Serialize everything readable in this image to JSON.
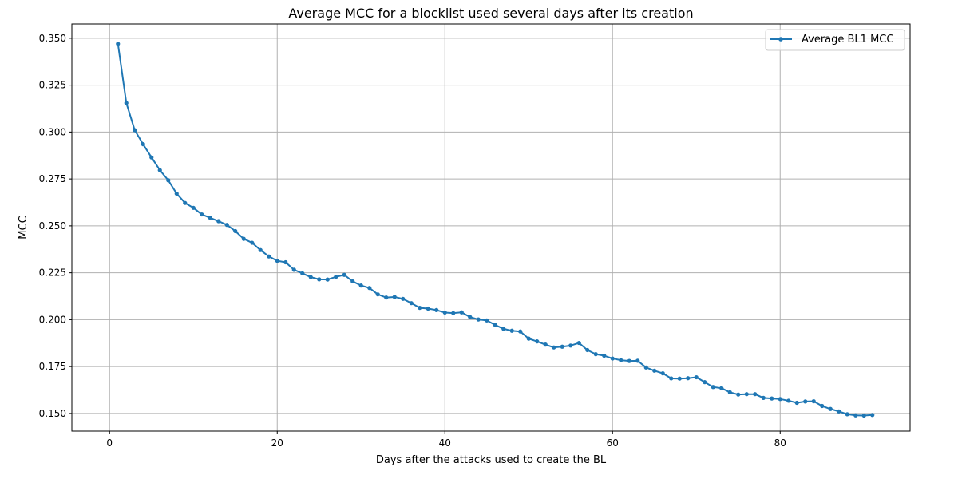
{
  "chart_data": {
    "type": "line",
    "title": "Average MCC for a blocklist used several days after its creation",
    "xlabel": "Days after the attacks used to create the BL",
    "ylabel": "MCC",
    "xlim": [
      -4.5,
      95.5
    ],
    "ylim": [
      0.1406,
      0.3576
    ],
    "xticks": [
      0,
      20,
      40,
      60,
      80
    ],
    "xtick_labels": [
      "0",
      "20",
      "40",
      "60",
      "80"
    ],
    "yticks": [
      0.15,
      0.175,
      0.2,
      0.225,
      0.25,
      0.275,
      0.3,
      0.325,
      0.35
    ],
    "ytick_labels": [
      "0.150",
      "0.175",
      "0.200",
      "0.225",
      "0.250",
      "0.275",
      "0.300",
      "0.325",
      "0.350"
    ],
    "grid": true,
    "legend_position": "top-right",
    "color": "#1f77b4",
    "series": [
      {
        "name": "Average BL1 MCC",
        "x": [
          1,
          2,
          3,
          4,
          5,
          6,
          7,
          8,
          9,
          10,
          11,
          12,
          13,
          14,
          15,
          16,
          17,
          18,
          19,
          20,
          21,
          22,
          23,
          24,
          25,
          26,
          27,
          28,
          29,
          30,
          31,
          32,
          33,
          34,
          35,
          36,
          37,
          38,
          39,
          40,
          41,
          42,
          43,
          44,
          45,
          46,
          47,
          48,
          49,
          50,
          51,
          52,
          53,
          54,
          55,
          56,
          57,
          58,
          59,
          60,
          61,
          62,
          63,
          64,
          65,
          66,
          67,
          68,
          69,
          70,
          71,
          72,
          73,
          74,
          75,
          76,
          77,
          78,
          79,
          80,
          81,
          82,
          83,
          84,
          85,
          86,
          87,
          88,
          89,
          90,
          91
        ],
        "y": [
          0.347,
          0.3155,
          0.301,
          0.2935,
          0.2865,
          0.2797,
          0.2743,
          0.2672,
          0.2622,
          0.2596,
          0.2561,
          0.2543,
          0.2525,
          0.2505,
          0.2472,
          0.2431,
          0.241,
          0.2371,
          0.2337,
          0.2314,
          0.2306,
          0.2266,
          0.2247,
          0.2227,
          0.2215,
          0.2214,
          0.2228,
          0.2239,
          0.2204,
          0.2182,
          0.2169,
          0.2135,
          0.2118,
          0.2121,
          0.2111,
          0.2088,
          0.2063,
          0.2059,
          0.2051,
          0.2038,
          0.2035,
          0.2039,
          0.2014,
          0.2001,
          0.1996,
          0.1972,
          0.1951,
          0.1941,
          0.1937,
          0.1899,
          0.1884,
          0.1867,
          0.1852,
          0.1856,
          0.1862,
          0.1876,
          0.1838,
          0.1816,
          0.1808,
          0.1793,
          0.1784,
          0.178,
          0.1781,
          0.1745,
          0.1728,
          0.1714,
          0.1687,
          0.1686,
          0.1688,
          0.1693,
          0.1667,
          0.1641,
          0.1635,
          0.1613,
          0.1601,
          0.1603,
          0.1603,
          0.1583,
          0.158,
          0.1577,
          0.1568,
          0.1557,
          0.1564,
          0.1565,
          0.154,
          0.1524,
          0.1511,
          0.1496,
          0.149,
          0.1489,
          0.1492
        ]
      }
    ]
  }
}
